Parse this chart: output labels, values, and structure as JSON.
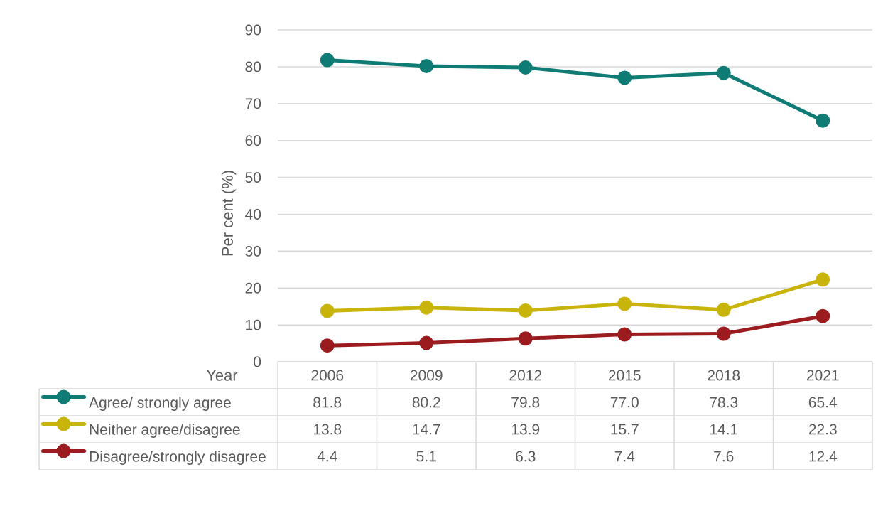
{
  "chart_data": {
    "type": "line",
    "xlabel": "Year",
    "ylabel": "Per cent (%)",
    "categories": [
      "2006",
      "2009",
      "2012",
      "2015",
      "2018",
      "2021"
    ],
    "series": [
      {
        "name": "Agree/ strongly agree",
        "color": "#0e7c74",
        "values": [
          81.8,
          80.2,
          79.8,
          77.0,
          78.3,
          65.4
        ],
        "value_labels": [
          "81.8",
          "80.2",
          "79.8",
          "77.0",
          "78.3",
          "65.4"
        ]
      },
      {
        "name": "Neither agree/disagree",
        "color": "#c8b40a",
        "values": [
          13.8,
          14.7,
          13.9,
          15.7,
          14.1,
          22.3
        ],
        "value_labels": [
          "13.8",
          "14.7",
          "13.9",
          "15.7",
          "14.1",
          "22.3"
        ]
      },
      {
        "name": "Disagree/strongly disagree",
        "color": "#9b1b1f",
        "values": [
          4.4,
          5.1,
          6.3,
          7.4,
          7.6,
          12.4
        ],
        "value_labels": [
          "4.4",
          "5.1",
          "6.3",
          "7.4",
          "7.6",
          "12.4"
        ]
      }
    ],
    "ylim": [
      0,
      90
    ],
    "yticks": [
      0,
      10,
      20,
      30,
      40,
      50,
      60,
      70,
      80,
      90
    ],
    "grid": "y",
    "legend": "bottom",
    "marker": "circle",
    "line_style": "solid"
  }
}
